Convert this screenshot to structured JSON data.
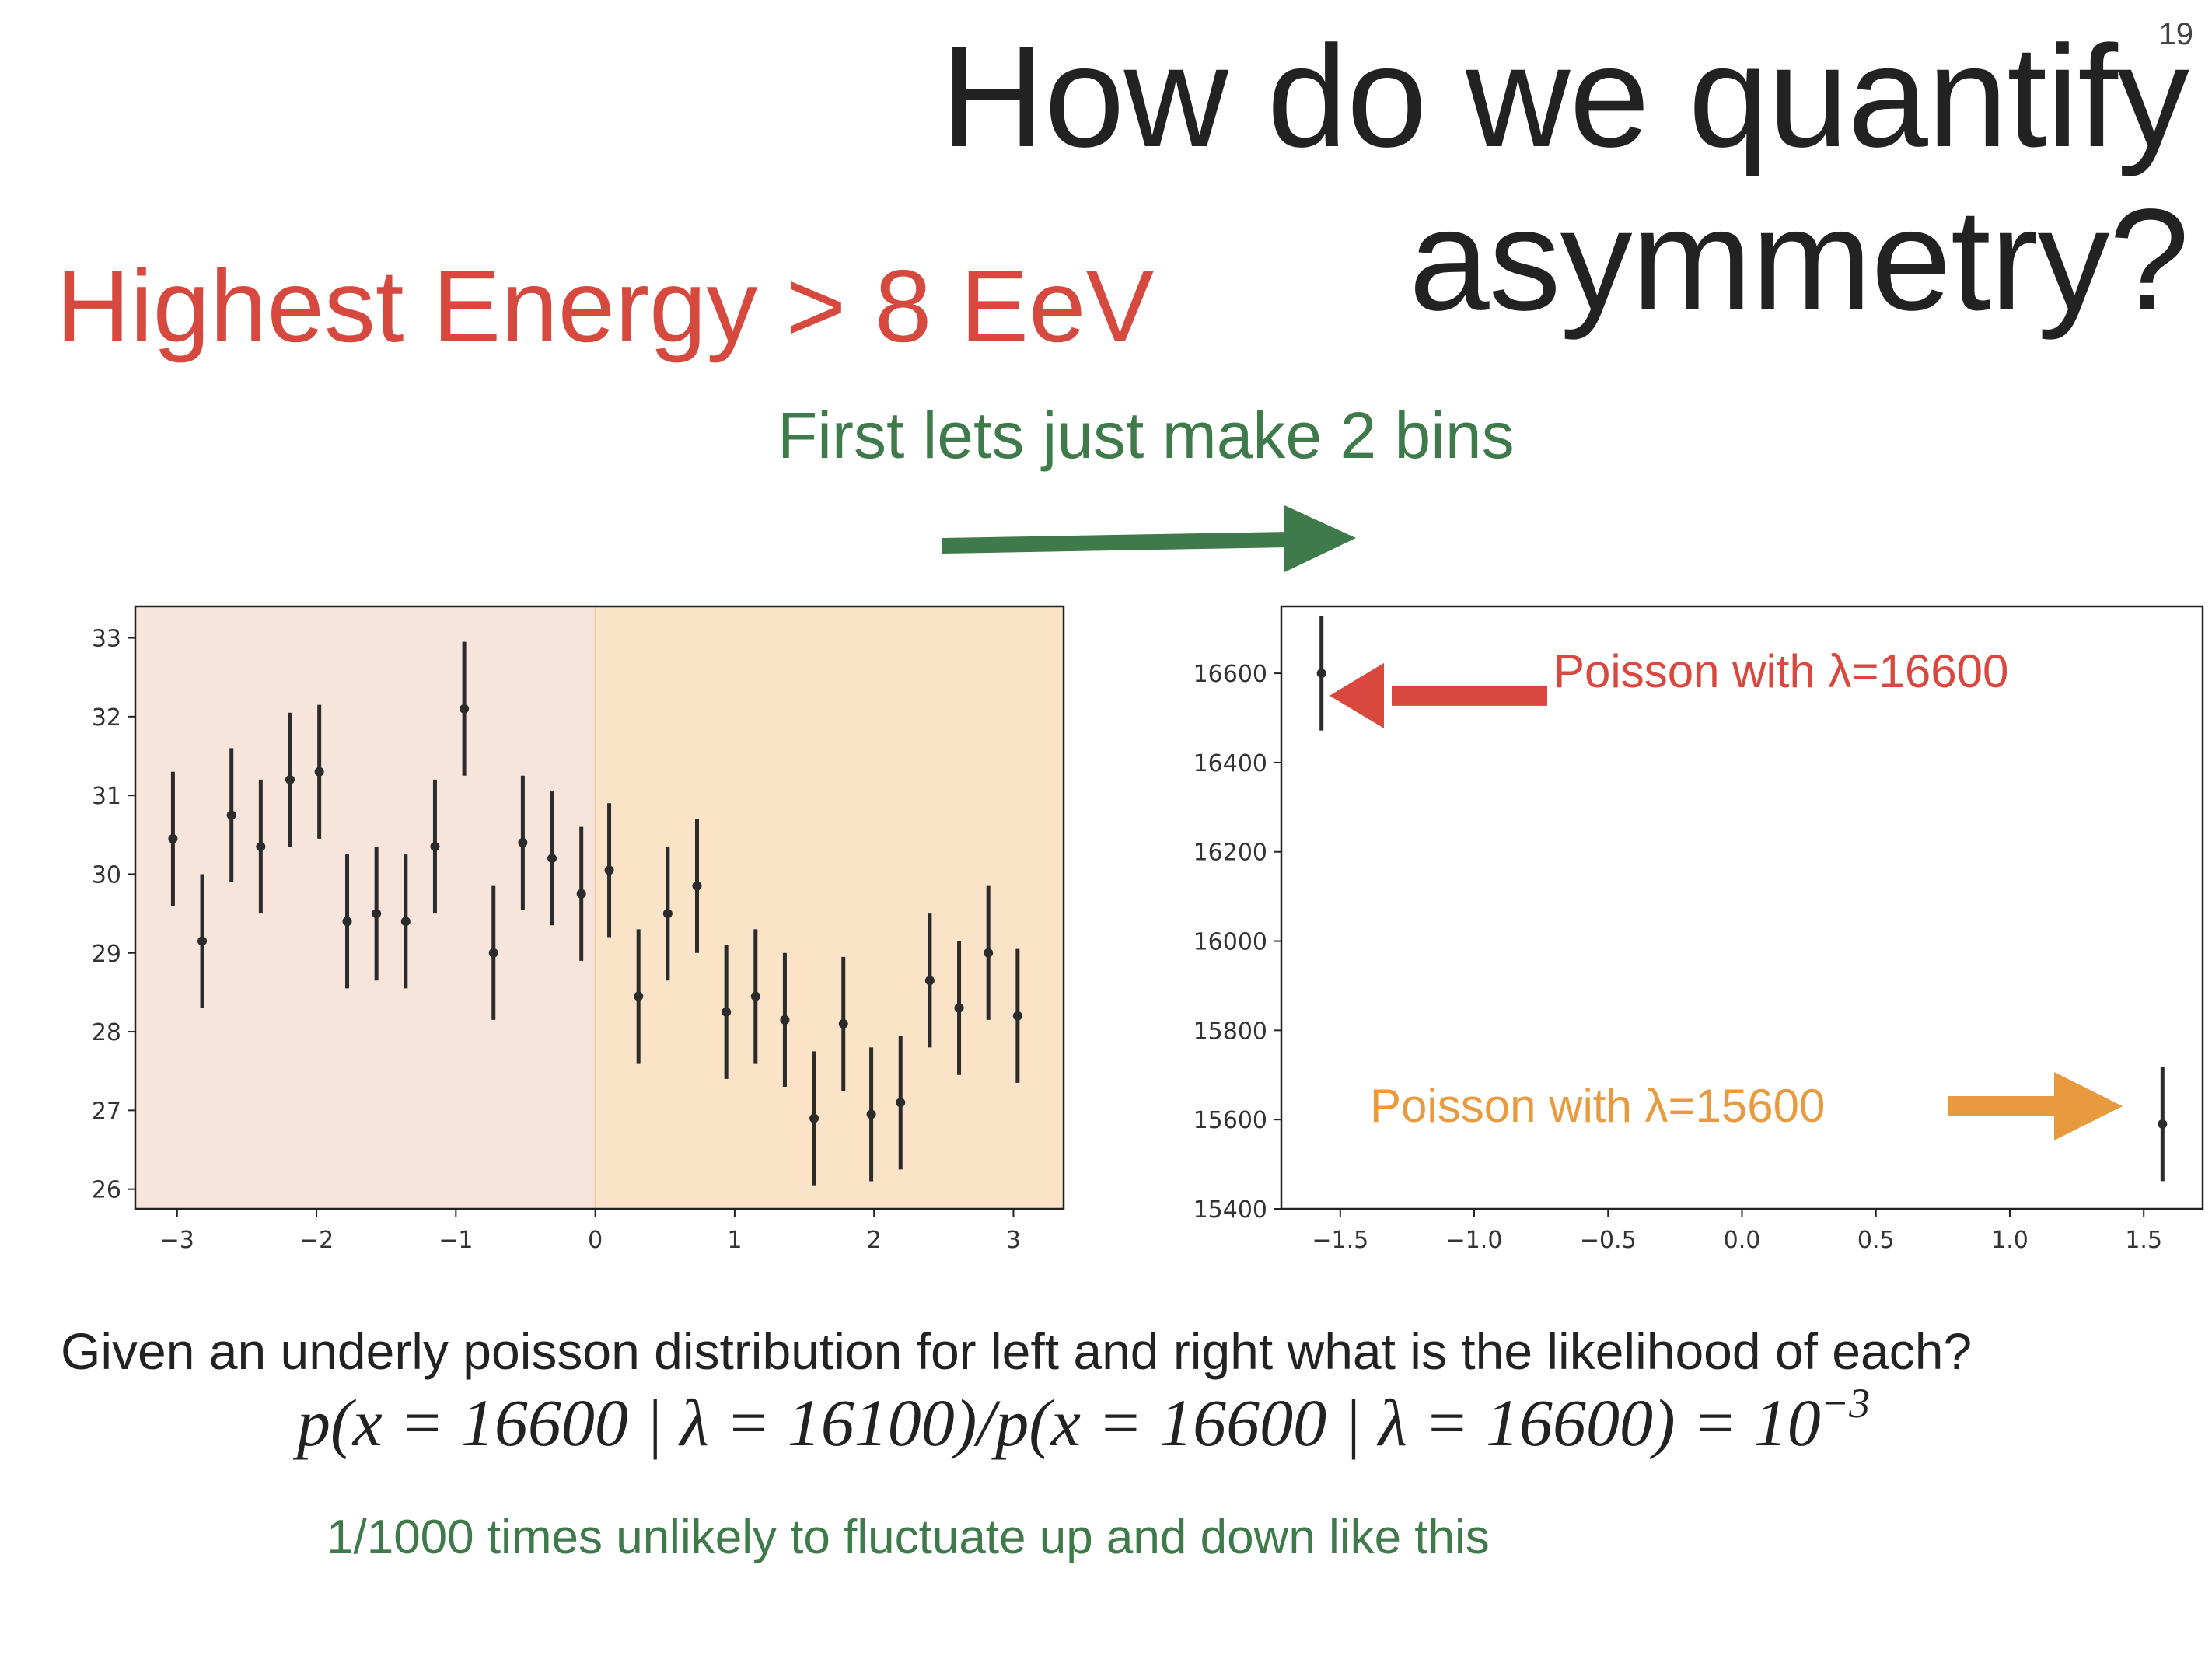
{
  "slide": {
    "number": "19",
    "title_line1": "How do we quantify",
    "title_line2": "asymmetry?",
    "subtitle": "Highest Energy > 8 EeV",
    "bins_note": "First lets just make 2 bins",
    "question": "Given an underly poisson distribution for left and right what is the likelihood of each?",
    "formula_main": "p(x = 16600 | λ = 16100)/p(x = 16600 | λ = 16600) = 10",
    "formula_exponent": "−3",
    "conclusion": "1/1000 times unlikely to fluctuate up and down like this"
  },
  "colors": {
    "title": "#222222",
    "subtitle_red": "#d6493e",
    "note_green": "#3f7a4b",
    "left_region_fill": "#f7e5dc",
    "right_region_fill": "#fae3c7",
    "arrow_red": "#d9473f",
    "arrow_orange": "#e89a3f",
    "points": "#333333"
  },
  "chart_data": [
    {
      "type": "scatter",
      "title": "",
      "xlabel": "",
      "ylabel": "",
      "xlim": [
        -3.3,
        3.36
      ],
      "ylim": [
        25.75,
        33.4
      ],
      "xticks": [
        -3,
        -2,
        -1,
        0,
        1,
        2,
        3
      ],
      "yticks": [
        26,
        27,
        28,
        29,
        30,
        31,
        32,
        33
      ],
      "shaded_regions": [
        {
          "x": [
            -3.3,
            0
          ],
          "color": "#f7e5dc"
        },
        {
          "x": [
            0,
            3.36
          ],
          "color": "#fae3c7"
        }
      ],
      "x": [
        -3.03,
        -2.82,
        -2.61,
        -2.4,
        -2.19,
        -1.98,
        -1.78,
        -1.57,
        -1.36,
        -1.15,
        -0.94,
        -0.73,
        -0.52,
        -0.31,
        -0.1,
        0.1,
        0.31,
        0.52,
        0.73,
        0.94,
        1.15,
        1.36,
        1.57,
        1.78,
        1.98,
        2.19,
        2.4,
        2.61,
        2.82,
        3.03
      ],
      "y": [
        30.45,
        29.15,
        30.75,
        30.35,
        31.2,
        31.3,
        29.4,
        29.5,
        29.4,
        30.35,
        32.1,
        29.0,
        30.4,
        30.2,
        29.75,
        30.05,
        28.45,
        29.5,
        29.85,
        28.25,
        28.45,
        28.15,
        26.9,
        28.1,
        26.95,
        27.1,
        28.65,
        28.3,
        29.0,
        28.2
      ],
      "yerr": 0.85
    },
    {
      "type": "scatter",
      "title": "",
      "xlabel": "",
      "ylabel": "",
      "xlim": [
        -1.72,
        1.72
      ],
      "ylim": [
        15400,
        16750
      ],
      "xticks": [
        -1.5,
        -1.0,
        -0.5,
        0.0,
        0.5,
        1.0,
        1.5
      ],
      "xtick_labels": [
        "−1.5",
        "−1.0",
        "−0.5",
        "0.0",
        "0.5",
        "1.0",
        "1.5"
      ],
      "yticks": [
        15400,
        15600,
        15800,
        16000,
        16200,
        16400,
        16600
      ],
      "x": [
        -1.57,
        1.57
      ],
      "y": [
        16600,
        15590
      ],
      "yerr": 128,
      "annotations": [
        {
          "text": "Poisson with λ=16600",
          "color": "#d9473f",
          "points_to": "left point"
        },
        {
          "text": "Poisson with λ=15600",
          "color": "#e89a3f",
          "points_to": "right point"
        }
      ]
    }
  ]
}
